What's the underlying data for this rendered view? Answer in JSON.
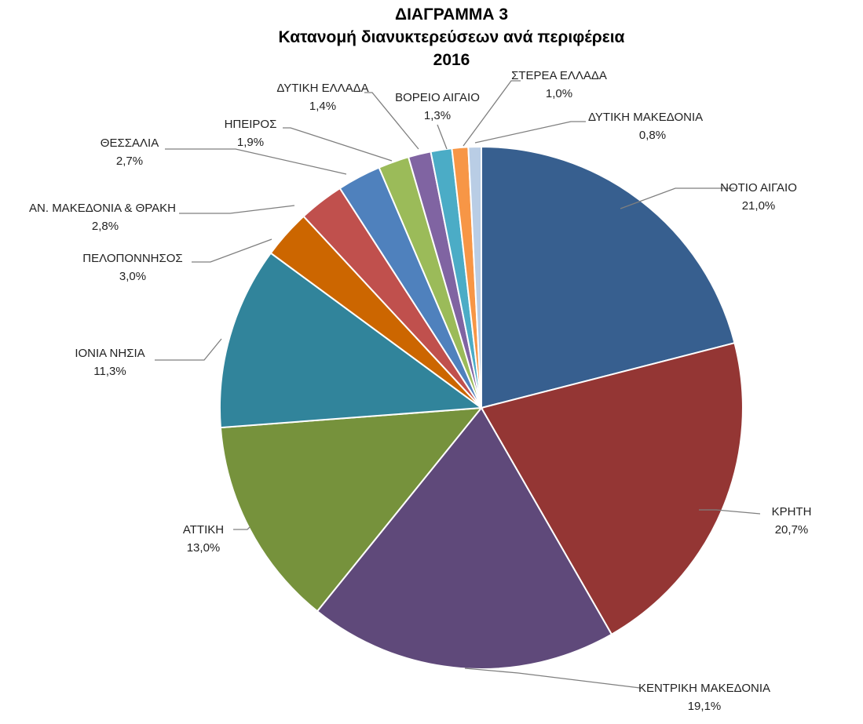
{
  "chart_data": {
    "type": "pie",
    "title": "ΔΙΑΓΡΑΜΜΑ 3",
    "subtitle": "Κατανομή διανυκτερεύσεων ανά περιφέρεια",
    "year": "2016",
    "start_angle_deg": 0,
    "direction": "clockwise",
    "slices": [
      {
        "label": "ΝΟΤΙΟ ΑΙΓΑΙΟ",
        "value": 21.0,
        "value_label": "21,0%",
        "color": "#375f8f"
      },
      {
        "label": "ΚΡΗΤΗ",
        "value": 20.7,
        "value_label": "20,7%",
        "color": "#943634"
      },
      {
        "label": "ΚΕΝΤΡΙΚΗ ΜΑΚΕΔΟΝΙΑ",
        "value": 19.1,
        "value_label": "19,1%",
        "color": "#5f497a"
      },
      {
        "label": "ΑΤΤΙΚΗ",
        "value": 13.0,
        "value_label": "13,0%",
        "color": "#76923c"
      },
      {
        "label": "ΙΟΝΙΑ ΝΗΣΙΑ",
        "value": 11.3,
        "value_label": "11,3%",
        "color": "#31849b"
      },
      {
        "label": "ΠΕΛΟΠΟΝΝΗΣΟΣ",
        "value": 3.0,
        "value_label": "3,0%",
        "color": "#cc6600"
      },
      {
        "label": "ΑΝ. ΜΑΚΕΔΟΝΙΑ & ΘΡΑΚΗ",
        "value": 2.8,
        "value_label": "2,8%",
        "color": "#c0504d"
      },
      {
        "label": "ΘΕΣΣΑΛΙΑ",
        "value": 2.7,
        "value_label": "2,7%",
        "color": "#4f81bd"
      },
      {
        "label": "ΗΠΕΙΡΟΣ",
        "value": 1.9,
        "value_label": "1,9%",
        "color": "#9bbb59"
      },
      {
        "label": "ΔΥΤΙΚΗ ΕΛΛΑΔΑ",
        "value": 1.4,
        "value_label": "1,4%",
        "color": "#8064a2"
      },
      {
        "label": "ΒΟΡΕΙΟ ΑΙΓΑΙΟ",
        "value": 1.3,
        "value_label": "1,3%",
        "color": "#4bacc6"
      },
      {
        "label": "ΣΤΕΡΕΑ ΕΛΛΑΔΑ",
        "value": 1.0,
        "value_label": "1,0%",
        "color": "#f79646"
      },
      {
        "label": "ΔΥΤΙΚΗ ΜΑΚΕΔΟΝΙΑ",
        "value": 0.8,
        "value_label": "0,8%",
        "color": "#b9cde5"
      }
    ]
  }
}
